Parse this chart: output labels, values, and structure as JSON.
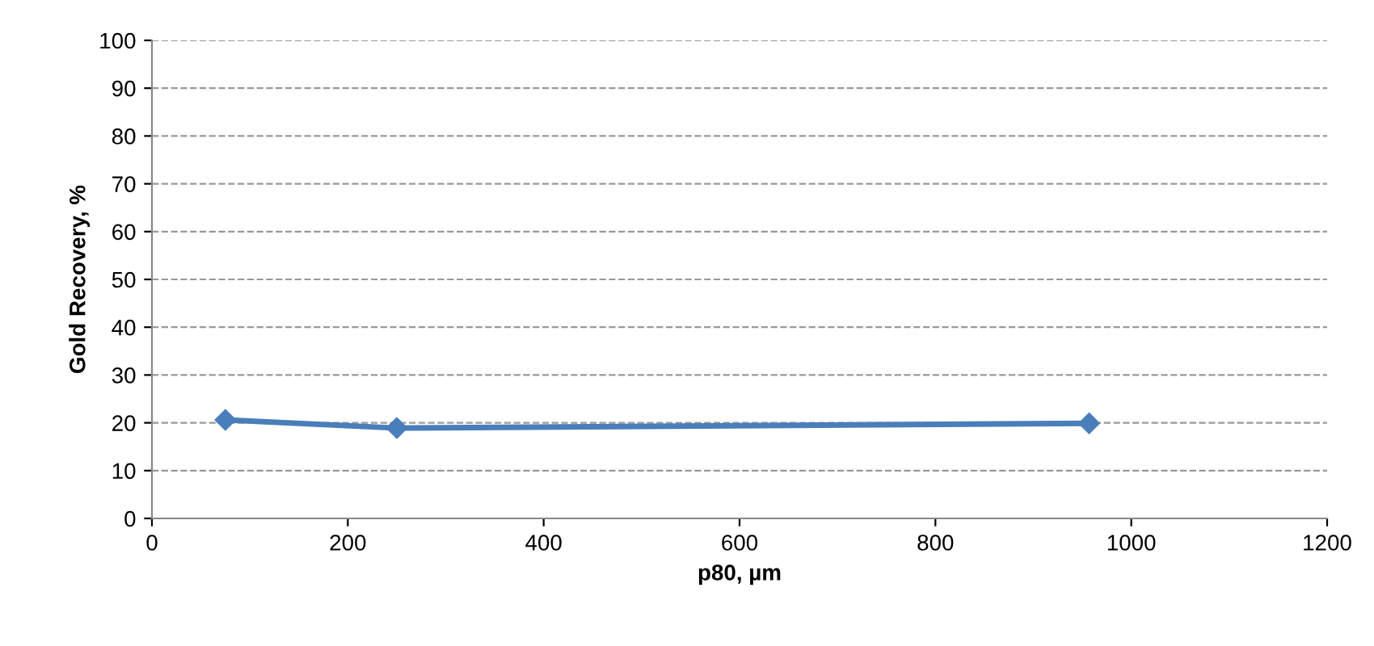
{
  "chart_data": {
    "type": "line",
    "xlabel": "p80, µm",
    "ylabel": "Gold Recovery, %",
    "x": [
      75,
      250,
      957
    ],
    "series": [
      {
        "color": "#4a7ebb",
        "values": [
          20.6,
          18.9,
          19.9
        ]
      }
    ],
    "xlim": [
      0,
      1200
    ],
    "xticks": [
      0,
      200,
      400,
      600,
      800,
      1000,
      1200
    ],
    "ylim": [
      0,
      100
    ],
    "yticks": [
      0,
      10,
      20,
      30,
      40,
      50,
      60,
      70,
      80,
      90,
      100
    ],
    "grid": "y",
    "marker": "diamond",
    "line_style": "solid",
    "legend": false
  }
}
